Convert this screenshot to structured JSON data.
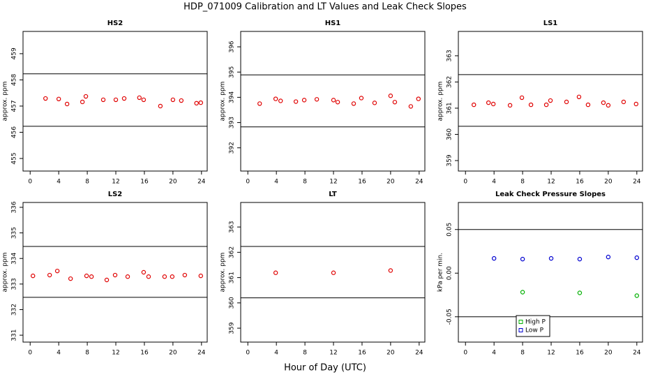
{
  "title": "HDP_071009  Calibration and LT Values and Leak Check Slopes",
  "xlabel": "Hour of Day (UTC)",
  "chart_data": [
    {
      "type": "scatter",
      "title": "HS2",
      "ylabel": "approx. ppm",
      "xlim": [
        -1,
        24.8
      ],
      "xticks": [
        0,
        4,
        8,
        12,
        16,
        20,
        24
      ],
      "ylim": [
        454.52,
        459.85
      ],
      "yticks": [
        455,
        456,
        457,
        458,
        459
      ],
      "hlines": [
        458.23,
        456.23
      ],
      "series": [
        {
          "color": "#e00000",
          "x": [
            2.15,
            4.0,
            5.17,
            7.32,
            7.8,
            10.24,
            12.0,
            13.17,
            15.3,
            15.9,
            18.24,
            20.0,
            21.17,
            23.3,
            23.9
          ],
          "values": [
            457.29,
            457.27,
            457.08,
            457.16,
            457.37,
            457.24,
            457.24,
            457.29,
            457.32,
            457.24,
            457.0,
            457.24,
            457.21,
            457.11,
            457.13
          ]
        }
      ]
    },
    {
      "type": "scatter",
      "title": "HS1",
      "ylabel": "approx. ppm",
      "xlim": [
        -1,
        24.8
      ],
      "xticks": [
        0,
        4,
        8,
        12,
        16,
        20,
        24
      ],
      "ylim": [
        391.08,
        396.61
      ],
      "yticks": [
        392,
        393,
        394,
        395,
        396
      ],
      "hlines": [
        394.89,
        392.83
      ],
      "series": [
        {
          "color": "#e00000",
          "x": [
            1.66,
            3.9,
            4.59,
            6.73,
            7.9,
            9.66,
            12.0,
            12.59,
            14.83,
            15.9,
            17.76,
            20.0,
            20.59,
            22.83,
            23.9
          ],
          "values": [
            393.75,
            393.94,
            393.86,
            393.83,
            393.89,
            393.92,
            393.89,
            393.81,
            393.75,
            393.97,
            393.78,
            394.06,
            393.81,
            393.64,
            393.94
          ]
        }
      ]
    },
    {
      "type": "scatter",
      "title": "LS1",
      "ylabel": "approx. ppm",
      "xlim": [
        -1,
        24.8
      ],
      "xticks": [
        0,
        4,
        8,
        12,
        16,
        20,
        24
      ],
      "ylim": [
        358.6,
        363.93
      ],
      "yticks": [
        359,
        360,
        361,
        362,
        363
      ],
      "hlines": [
        362.28,
        360.31
      ],
      "series": [
        {
          "color": "#e00000",
          "x": [
            1.17,
            3.22,
            3.9,
            6.24,
            7.9,
            9.17,
            11.32,
            11.9,
            14.15,
            15.9,
            17.17,
            19.32,
            20.0,
            22.15,
            23.9
          ],
          "values": [
            361.13,
            361.21,
            361.16,
            361.11,
            361.4,
            361.13,
            361.13,
            361.29,
            361.24,
            361.43,
            361.13,
            361.21,
            361.11,
            361.24,
            361.16
          ]
        }
      ]
    },
    {
      "type": "scatter",
      "title": "LS2",
      "ylabel": "approx. ppm",
      "xlim": [
        -1,
        24.8
      ],
      "xticks": [
        0,
        4,
        8,
        12,
        16,
        20,
        24
      ],
      "ylim": [
        330.73,
        336.19
      ],
      "yticks": [
        331,
        332,
        333,
        334,
        335,
        336
      ],
      "hlines": [
        334.47,
        332.48
      ],
      "series": [
        {
          "color": "#e00000",
          "x": [
            0.39,
            2.73,
            3.8,
            5.66,
            7.9,
            8.59,
            10.73,
            11.9,
            13.66,
            15.9,
            16.59,
            18.83,
            19.9,
            21.66,
            23.9
          ],
          "values": [
            333.32,
            333.35,
            333.51,
            333.21,
            333.32,
            333.29,
            333.16,
            333.35,
            333.29,
            333.46,
            333.29,
            333.29,
            333.29,
            333.35,
            333.32
          ]
        }
      ]
    },
    {
      "type": "scatter",
      "title": "LT",
      "ylabel": "approx. ppm",
      "xlim": [
        -1,
        24.8
      ],
      "xticks": [
        0,
        4,
        8,
        12,
        16,
        20,
        24
      ],
      "ylim": [
        358.45,
        363.97
      ],
      "yticks": [
        359,
        360,
        361,
        362,
        363
      ],
      "hlines": [
        362.23,
        360.2
      ],
      "series": [
        {
          "color": "#e00000",
          "x": [
            3.9,
            12.0,
            20.0
          ],
          "values": [
            361.19,
            361.19,
            361.28
          ]
        }
      ]
    },
    {
      "type": "scatter",
      "title": "Leak Check Pressure Slopes",
      "ylabel": "kPa per min.",
      "xlim": [
        -1,
        24.8
      ],
      "xticks": [
        0,
        4,
        8,
        12,
        16,
        20,
        24
      ],
      "ylim": [
        -0.079,
        0.081
      ],
      "yticks": [
        {
          "value": -0.05,
          "label": "-0.05"
        },
        {
          "value": 0,
          "label": "0.00"
        },
        {
          "value": 0.05,
          "label": "0.05"
        }
      ],
      "hlines": [
        0.05,
        -0.05
      ],
      "legend": "bottom",
      "series": [
        {
          "name": "High P",
          "color": "#00b000",
          "x": [
            8,
            16,
            24
          ],
          "values": [
            -0.0218,
            -0.0226,
            -0.0258
          ]
        },
        {
          "name": "Low P",
          "color": "#0000d0",
          "x": [
            4,
            8,
            12,
            16,
            20,
            24
          ],
          "values": [
            0.0169,
            0.0161,
            0.0169,
            0.0161,
            0.0185,
            0.0177
          ]
        }
      ]
    }
  ]
}
